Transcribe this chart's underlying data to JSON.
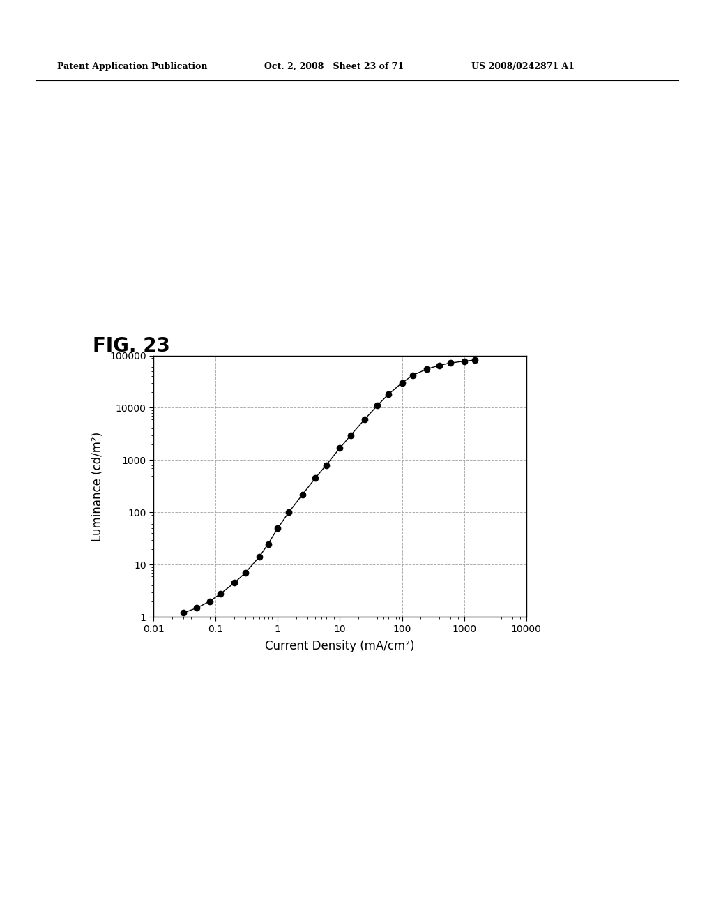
{
  "title": "FIG. 23",
  "xlabel": "Current Density (mA/cm²)",
  "ylabel": "Luminance (cd/m²)",
  "xlim": [
    0.01,
    10000
  ],
  "ylim": [
    1,
    100000
  ],
  "background_color": "#ffffff",
  "header_left": "Patent Application Publication",
  "header_center": "Oct. 2, 2008   Sheet 23 of 71",
  "header_right": "US 2008/0242871 A1",
  "x_data": [
    0.03,
    0.05,
    0.08,
    0.12,
    0.2,
    0.3,
    0.5,
    0.7,
    1.0,
    1.5,
    2.5,
    4.0,
    6.0,
    10.0,
    15.0,
    25.0,
    40.0,
    60.0,
    100.0,
    150.0,
    250.0,
    400.0,
    600.0,
    1000.0,
    1500.0
  ],
  "y_data": [
    1.2,
    1.5,
    2.0,
    2.8,
    4.5,
    7.0,
    14.0,
    25.0,
    50.0,
    100.0,
    220.0,
    450.0,
    800.0,
    1700.0,
    3000.0,
    6000.0,
    11000.0,
    18000.0,
    30000.0,
    42000.0,
    55000.0,
    65000.0,
    72000.0,
    78000.0,
    82000.0
  ],
  "line_color": "#000000",
  "marker_color": "#000000",
  "marker_size": 6,
  "grid_linestyle": "--",
  "grid_color": "#999999",
  "grid_alpha": 0.8
}
